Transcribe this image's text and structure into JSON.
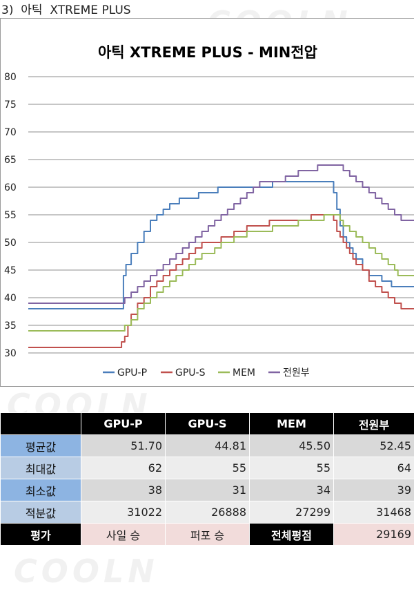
{
  "heading": "3)  아틱  XTREME PLUS",
  "chart_data": {
    "type": "line",
    "title": "아틱 XTREME PLUS - MIN전압",
    "ylim": [
      30,
      80
    ],
    "yticks": [
      "30",
      "35",
      "40",
      "45",
      "50",
      "55",
      "60",
      "65",
      "70",
      "75",
      "80"
    ],
    "grid": true,
    "legend_position": "bottom",
    "series": [
      {
        "name": "GPU-P",
        "color": "#4a7ebb",
        "points": [
          [
            0,
            38
          ],
          [
            140,
            38
          ],
          [
            145,
            38
          ],
          [
            148,
            44
          ],
          [
            152,
            46
          ],
          [
            160,
            48
          ],
          [
            170,
            50
          ],
          [
            180,
            52
          ],
          [
            190,
            54
          ],
          [
            200,
            55
          ],
          [
            210,
            56
          ],
          [
            220,
            57
          ],
          [
            235,
            58
          ],
          [
            250,
            58
          ],
          [
            265,
            59
          ],
          [
            280,
            59
          ],
          [
            295,
            60
          ],
          [
            320,
            60
          ],
          [
            350,
            60
          ],
          [
            380,
            61
          ],
          [
            400,
            61
          ],
          [
            420,
            61
          ],
          [
            440,
            61
          ],
          [
            455,
            61
          ],
          [
            470,
            61
          ],
          [
            475,
            59
          ],
          [
            480,
            56
          ],
          [
            485,
            53
          ],
          [
            490,
            51
          ],
          [
            495,
            50
          ],
          [
            500,
            49
          ],
          [
            505,
            48
          ],
          [
            510,
            47
          ],
          [
            520,
            45
          ],
          [
            530,
            44
          ],
          [
            540,
            44
          ],
          [
            550,
            43
          ],
          [
            560,
            43
          ],
          [
            565,
            42
          ],
          [
            600,
            42
          ]
        ]
      },
      {
        "name": "GPU-S",
        "color": "#c0504d",
        "points": [
          [
            0,
            31
          ],
          [
            140,
            31
          ],
          [
            145,
            32
          ],
          [
            150,
            33
          ],
          [
            155,
            35
          ],
          [
            160,
            37
          ],
          [
            170,
            39
          ],
          [
            180,
            40
          ],
          [
            190,
            42
          ],
          [
            200,
            43
          ],
          [
            210,
            44
          ],
          [
            220,
            45
          ],
          [
            230,
            46
          ],
          [
            240,
            47
          ],
          [
            250,
            48
          ],
          [
            260,
            49
          ],
          [
            270,
            50
          ],
          [
            290,
            50
          ],
          [
            300,
            51
          ],
          [
            320,
            52
          ],
          [
            340,
            53
          ],
          [
            360,
            53
          ],
          [
            375,
            54
          ],
          [
            400,
            54
          ],
          [
            420,
            54
          ],
          [
            440,
            55
          ],
          [
            470,
            55
          ],
          [
            475,
            54
          ],
          [
            480,
            52
          ],
          [
            485,
            51
          ],
          [
            490,
            50
          ],
          [
            495,
            49
          ],
          [
            500,
            48
          ],
          [
            505,
            47
          ],
          [
            510,
            46
          ],
          [
            520,
            45
          ],
          [
            530,
            43
          ],
          [
            540,
            42
          ],
          [
            550,
            41
          ],
          [
            560,
            40
          ],
          [
            570,
            39
          ],
          [
            580,
            38
          ],
          [
            600,
            38
          ]
        ]
      },
      {
        "name": "MEM",
        "color": "#9bbb59",
        "points": [
          [
            0,
            34
          ],
          [
            145,
            34
          ],
          [
            150,
            35
          ],
          [
            160,
            36
          ],
          [
            170,
            38
          ],
          [
            180,
            39
          ],
          [
            190,
            40
          ],
          [
            200,
            41
          ],
          [
            210,
            42
          ],
          [
            220,
            43
          ],
          [
            230,
            44
          ],
          [
            240,
            45
          ],
          [
            250,
            46
          ],
          [
            260,
            47
          ],
          [
            270,
            48
          ],
          [
            280,
            48
          ],
          [
            290,
            49
          ],
          [
            300,
            50
          ],
          [
            320,
            51
          ],
          [
            340,
            52
          ],
          [
            360,
            52
          ],
          [
            380,
            53
          ],
          [
            400,
            53
          ],
          [
            420,
            54
          ],
          [
            440,
            54
          ],
          [
            460,
            55
          ],
          [
            475,
            55
          ],
          [
            480,
            55
          ],
          [
            485,
            54
          ],
          [
            490,
            53
          ],
          [
            500,
            52
          ],
          [
            510,
            51
          ],
          [
            520,
            50
          ],
          [
            530,
            49
          ],
          [
            540,
            48
          ],
          [
            550,
            47
          ],
          [
            560,
            46
          ],
          [
            570,
            45
          ],
          [
            575,
            44
          ],
          [
            600,
            44
          ]
        ]
      },
      {
        "name": "전원부",
        "color": "#8064a2",
        "points": [
          [
            0,
            39
          ],
          [
            145,
            39
          ],
          [
            150,
            40
          ],
          [
            160,
            41
          ],
          [
            170,
            42
          ],
          [
            180,
            43
          ],
          [
            190,
            44
          ],
          [
            200,
            45
          ],
          [
            210,
            46
          ],
          [
            220,
            47
          ],
          [
            230,
            48
          ],
          [
            240,
            49
          ],
          [
            250,
            50
          ],
          [
            260,
            51
          ],
          [
            270,
            52
          ],
          [
            280,
            53
          ],
          [
            290,
            54
          ],
          [
            300,
            55
          ],
          [
            310,
            56
          ],
          [
            320,
            57
          ],
          [
            330,
            58
          ],
          [
            340,
            59
          ],
          [
            350,
            60
          ],
          [
            360,
            61
          ],
          [
            380,
            61
          ],
          [
            400,
            62
          ],
          [
            420,
            63
          ],
          [
            440,
            63
          ],
          [
            450,
            64
          ],
          [
            470,
            64
          ],
          [
            485,
            64
          ],
          [
            490,
            63
          ],
          [
            500,
            62
          ],
          [
            510,
            61
          ],
          [
            520,
            60
          ],
          [
            530,
            59
          ],
          [
            540,
            58
          ],
          [
            550,
            57
          ],
          [
            560,
            56
          ],
          [
            570,
            55
          ],
          [
            580,
            54
          ],
          [
            600,
            54
          ]
        ]
      }
    ]
  },
  "table": {
    "headers": [
      "",
      "GPU-P",
      "GPU-S",
      "MEM",
      "전원부"
    ],
    "rows": [
      {
        "label": "평균값",
        "values": [
          "51.70",
          "44.81",
          "45.50",
          "52.45"
        ]
      },
      {
        "label": "최대값",
        "values": [
          "62",
          "55",
          "55",
          "64"
        ]
      },
      {
        "label": "최소값",
        "values": [
          "38",
          "31",
          "34",
          "39"
        ]
      },
      {
        "label": "적분값",
        "values": [
          "31022",
          "26888",
          "27299",
          "31468"
        ]
      }
    ],
    "footer": {
      "label": "평가",
      "gpu_p": "사일  승",
      "gpu_s": "퍼포  승",
      "total_label": "전체평점",
      "total_value": "29169"
    }
  },
  "colors": {
    "header_bg": "#000000",
    "row_label_dark": "#8db4e2",
    "row_label_light": "#b8cce4",
    "eval_bg": "#f2dcdb"
  },
  "watermark": "COOLN"
}
